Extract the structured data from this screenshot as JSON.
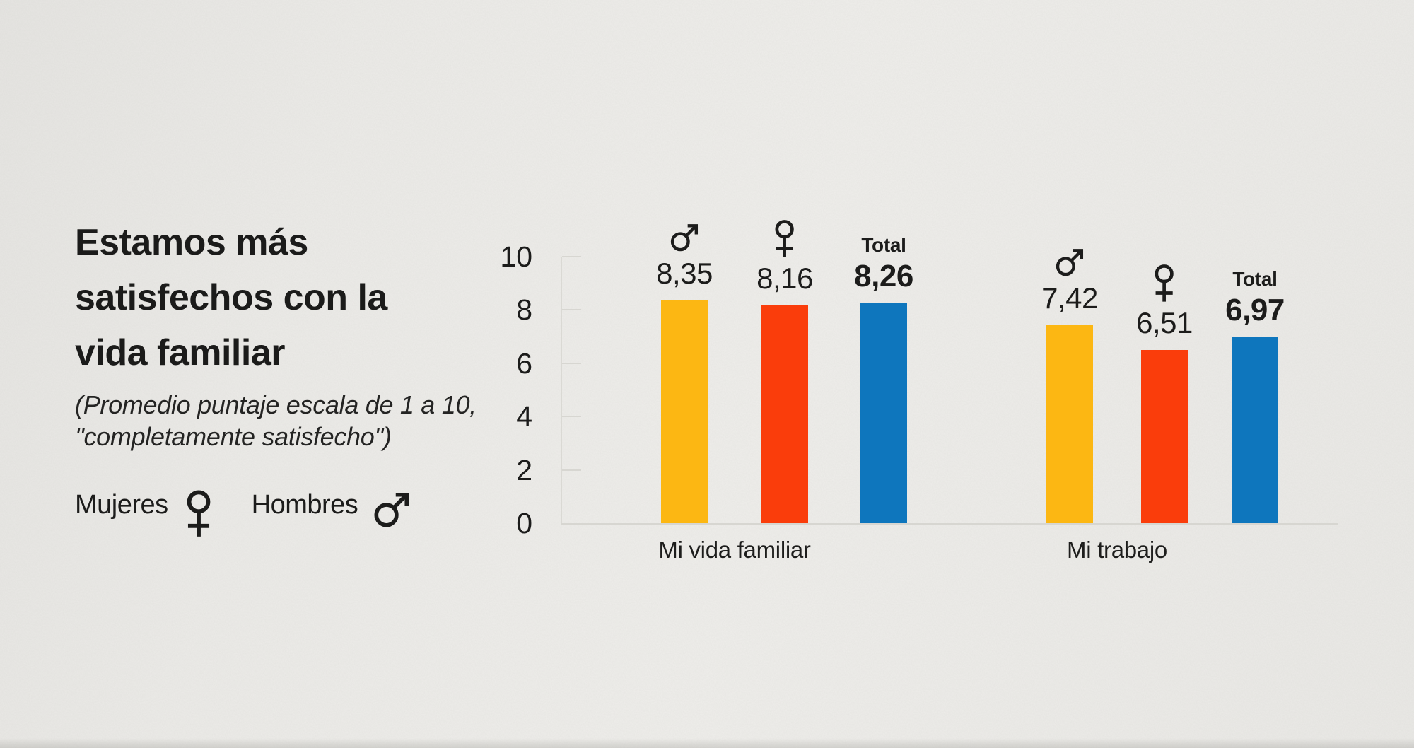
{
  "header": {
    "title_lines": [
      "Estamos más",
      "satisfechos con la",
      "vida familiar"
    ],
    "subtitle_lines": [
      "(Promedio puntaje escala de 1 a 10,",
      "\"completamente satisfecho\")"
    ]
  },
  "legend": {
    "items": [
      {
        "label": "Mujeres",
        "symbol": "female-icon"
      },
      {
        "label": "Hombres",
        "symbol": "male-icon"
      }
    ]
  },
  "chart_data": {
    "type": "bar",
    "title": "Estamos más satisfechos con la vida familiar",
    "subtitle": "(Promedio puntaje escala de 1 a 10, \"completamente satisfecho\")",
    "categories": [
      "Mi vida familiar",
      "Mi trabajo"
    ],
    "series": [
      {
        "name": "Hombres",
        "symbol": "male",
        "color": "#FCB713",
        "values": [
          8.35,
          7.42
        ],
        "value_labels": [
          "8,35",
          "7,42"
        ]
      },
      {
        "name": "Mujeres",
        "symbol": "female",
        "color": "#FA3D0B",
        "values": [
          8.16,
          6.51
        ],
        "value_labels": [
          "8,16",
          "6,51"
        ]
      },
      {
        "name": "Total",
        "symbol": "total",
        "label": "Total",
        "color": "#0E76BD",
        "values": [
          8.26,
          6.97
        ],
        "value_labels": [
          "8,26",
          "6,97"
        ]
      }
    ],
    "xlabel": "",
    "ylabel": "",
    "ylim": [
      0,
      10
    ],
    "yticks": [
      0,
      2,
      4,
      6,
      8,
      10
    ],
    "grid": false,
    "legend_position": "left",
    "decimal_separator": ","
  },
  "colors": {
    "background": "#ECEBE8",
    "text": "#1C1C1B",
    "axis": "#D7D6D1",
    "male_bar": "#FCB713",
    "female_bar": "#FA3D0B",
    "total_bar": "#0E76BD"
  }
}
